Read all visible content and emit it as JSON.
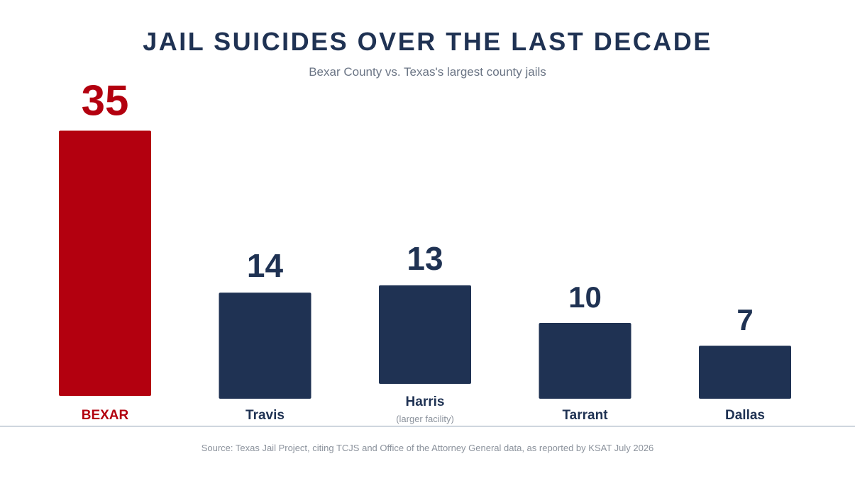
{
  "title": "JAIL SUICIDES OVER THE LAST DECADE",
  "subtitle": "Bexar County vs. Texas's largest county jails",
  "source": "Source: Texas Jail Project, citing TCJS and Office of the Attorney General data, as reported by KSAT July 2026",
  "colors": {
    "highlight": "#b3000f",
    "bar": "#1f3253",
    "baseline": "#cfd6de"
  },
  "chart_data": {
    "type": "bar",
    "categories": [
      "BEXAR",
      "Travis",
      "Harris",
      "Tarrant",
      "Dallas"
    ],
    "category_notes": [
      "",
      "",
      "(larger facility)",
      "",
      ""
    ],
    "values": [
      35,
      14,
      13,
      10,
      7
    ],
    "highlight_index": 0,
    "title": "JAIL SUICIDES OVER THE LAST DECADE",
    "subtitle": "Bexar County vs. Texas's largest county jails",
    "xlabel": "",
    "ylabel": "",
    "grid": false,
    "legend": "none"
  }
}
